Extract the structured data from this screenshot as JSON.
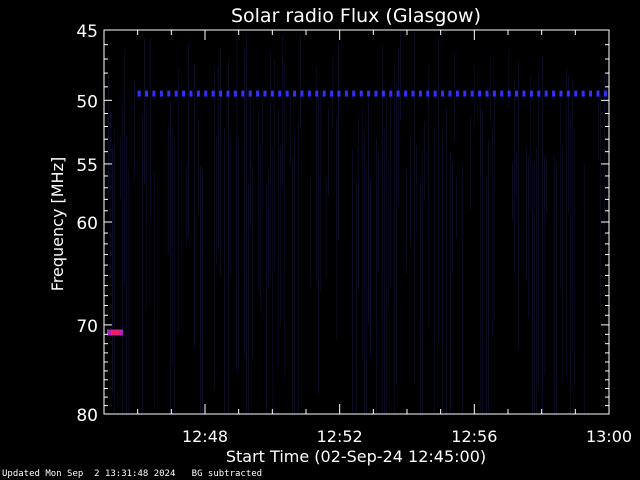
{
  "chart_data": {
    "type": "heatmap",
    "title": "Solar radio Flux (Glasgow)",
    "xlabel": "Start Time (02-Sep-24 12:45:00)",
    "ylabel": "Frequency [MHz]",
    "x_range": [
      "12:45",
      "13:00"
    ],
    "x_tick_labels": [
      "12:48",
      "12:52",
      "12:56",
      "13:00"
    ],
    "ylim": [
      45,
      80
    ],
    "y_scale": "log",
    "y_ticks": [
      45,
      50,
      55,
      60,
      70,
      80
    ],
    "colormap": "blue-black, background subtracted",
    "features": [
      {
        "name": "50 MHz line",
        "freq_mhz": 49.5,
        "time_start": "12:46",
        "time_end": "13:00",
        "color": "#3030ff"
      },
      {
        "name": "71 MHz burst",
        "freq_mhz": 70.8,
        "time_start": "12:45",
        "time_end": "12:45",
        "color": "#b020c0"
      }
    ]
  },
  "footer": {
    "updated": "Updated Mon Sep  2 13:31:48 2024",
    "note": "BG subtracted"
  },
  "colors": {
    "background": "#000000",
    "axis": "#ffffff",
    "signal": "#2828d0"
  }
}
